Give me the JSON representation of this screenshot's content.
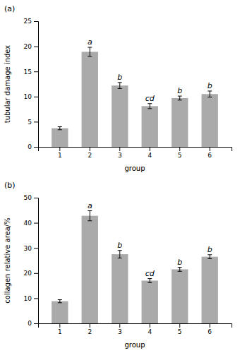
{
  "chart_data": [
    {
      "type": "bar",
      "title": "(a)",
      "xlabel": "group",
      "ylabel": "tubular damage index",
      "categories": [
        "1",
        "2",
        "3",
        "4",
        "5",
        "6"
      ],
      "values": [
        3.7,
        18.9,
        12.2,
        8.1,
        9.7,
        10.5
      ],
      "errors": [
        0.3,
        0.9,
        0.6,
        0.5,
        0.4,
        0.6
      ],
      "annotations": [
        null,
        "a",
        "b",
        "cd",
        "b",
        "b"
      ],
      "color": "#aaaaaa",
      "ylim": [
        0,
        25
      ],
      "yticks": [
        0,
        5,
        10,
        15,
        20,
        25
      ]
    },
    {
      "type": "bar",
      "title": "(b)",
      "xlabel": "group",
      "ylabel": "collagen relative area/%",
      "categories": [
        "1",
        "2",
        "3",
        "4",
        "5",
        "6"
      ],
      "values": [
        8.8,
        42.8,
        27.5,
        17.0,
        21.5,
        26.5
      ],
      "errors": [
        0.6,
        2.0,
        1.5,
        0.8,
        0.8,
        0.8
      ],
      "annotations": [
        null,
        "a",
        "b",
        "cd",
        "b",
        "b"
      ],
      "color": "#aaaaaa",
      "ylim": [
        0,
        50
      ],
      "yticks": [
        0,
        10,
        20,
        30,
        40,
        50
      ]
    }
  ]
}
